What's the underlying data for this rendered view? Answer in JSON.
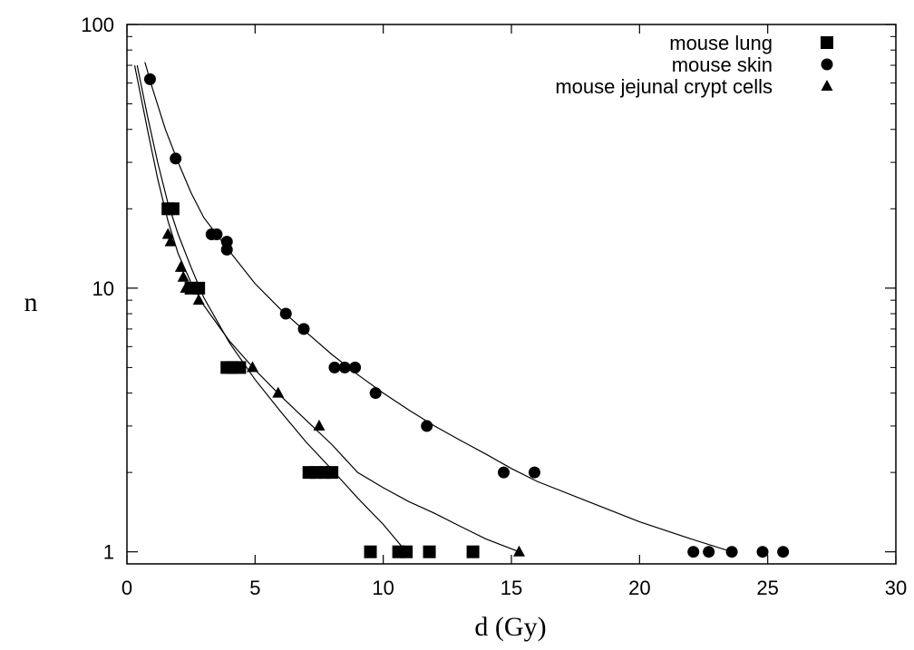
{
  "chart_data": {
    "type": "scatter",
    "xlabel": "d (Gy)",
    "ylabel": "n",
    "xlim": [
      0,
      30
    ],
    "ylim": [
      0.9,
      100
    ],
    "y_scale": "log",
    "x_ticks": [
      "0",
      "5",
      "10",
      "15",
      "20",
      "25",
      "30"
    ],
    "y_ticks": [
      "1",
      "10",
      "100"
    ],
    "legend_position": "top-right",
    "grid": false,
    "series": [
      {
        "name": "mouse lung",
        "marker": "square",
        "color": "#000000",
        "points": [
          [
            1.6,
            20
          ],
          [
            1.8,
            20
          ],
          [
            2.5,
            10
          ],
          [
            2.8,
            10
          ],
          [
            3.9,
            5
          ],
          [
            4.1,
            5
          ],
          [
            4.4,
            5
          ],
          [
            7.1,
            2
          ],
          [
            7.4,
            2
          ],
          [
            7.7,
            2
          ],
          [
            8.0,
            2
          ],
          [
            9.5,
            1
          ],
          [
            10.6,
            1
          ],
          [
            10.9,
            1
          ],
          [
            11.8,
            1
          ],
          [
            13.5,
            1
          ]
        ],
        "fit": [
          [
            0.4,
            70
          ],
          [
            0.8,
            45
          ],
          [
            1.2,
            30
          ],
          [
            1.6,
            21
          ],
          [
            2.0,
            16
          ],
          [
            2.5,
            12
          ],
          [
            3.0,
            9.2
          ],
          [
            4.0,
            6.2
          ],
          [
            5.0,
            4.5
          ],
          [
            6.0,
            3.4
          ],
          [
            7.0,
            2.6
          ],
          [
            8.0,
            2.05
          ],
          [
            9.0,
            1.6
          ],
          [
            10.0,
            1.27
          ],
          [
            10.9,
            1.0
          ]
        ]
      },
      {
        "name": "mouse skin",
        "marker": "circle",
        "color": "#000000",
        "points": [
          [
            0.9,
            62
          ],
          [
            1.9,
            31
          ],
          [
            3.3,
            16
          ],
          [
            3.5,
            16
          ],
          [
            3.9,
            15
          ],
          [
            3.9,
            14
          ],
          [
            6.2,
            8
          ],
          [
            6.9,
            7
          ],
          [
            8.1,
            5
          ],
          [
            8.5,
            5
          ],
          [
            8.9,
            5
          ],
          [
            9.7,
            4
          ],
          [
            11.7,
            3
          ],
          [
            14.7,
            2
          ],
          [
            15.9,
            2
          ],
          [
            22.1,
            1
          ],
          [
            22.7,
            1
          ],
          [
            23.6,
            1
          ],
          [
            24.8,
            1
          ],
          [
            25.6,
            1
          ]
        ],
        "fit": [
          [
            0.7,
            72
          ],
          [
            1.0,
            57
          ],
          [
            1.5,
            40
          ],
          [
            2.0,
            30
          ],
          [
            2.5,
            23
          ],
          [
            3.0,
            18.5
          ],
          [
            3.5,
            16
          ],
          [
            4.0,
            13.8
          ],
          [
            5.0,
            10.4
          ],
          [
            6.0,
            8.3
          ],
          [
            7.0,
            6.8
          ],
          [
            8.0,
            5.6
          ],
          [
            9.0,
            4.7
          ],
          [
            10.0,
            4.0
          ],
          [
            11.0,
            3.45
          ],
          [
            12.0,
            3.0
          ],
          [
            13.0,
            2.65
          ],
          [
            14.0,
            2.35
          ],
          [
            15.0,
            2.07
          ],
          [
            16.0,
            1.85
          ],
          [
            18.0,
            1.55
          ],
          [
            20.0,
            1.3
          ],
          [
            22.0,
            1.12
          ],
          [
            23.6,
            1.0
          ]
        ]
      },
      {
        "name": "mouse jejunal crypt cells",
        "marker": "triangle",
        "color": "#000000",
        "points": [
          [
            1.6,
            16
          ],
          [
            1.7,
            15
          ],
          [
            2.1,
            12
          ],
          [
            2.2,
            11
          ],
          [
            2.3,
            10
          ],
          [
            2.8,
            9
          ],
          [
            4.9,
            5
          ],
          [
            5.9,
            4
          ],
          [
            7.5,
            3
          ],
          [
            15.3,
            1
          ]
        ],
        "fit": [
          [
            0.3,
            70
          ],
          [
            0.8,
            40
          ],
          [
            1.2,
            26
          ],
          [
            1.6,
            18
          ],
          [
            2.0,
            13.5
          ],
          [
            2.5,
            10.5
          ],
          [
            3.0,
            8.6
          ],
          [
            4.0,
            6.3
          ],
          [
            5.0,
            4.9
          ],
          [
            6.0,
            3.9
          ],
          [
            7.0,
            3.15
          ],
          [
            8.0,
            2.55
          ],
          [
            9.0,
            2.0
          ],
          [
            10.0,
            1.75
          ],
          [
            11.0,
            1.55
          ],
          [
            12.0,
            1.4
          ],
          [
            13.0,
            1.25
          ],
          [
            14.0,
            1.12
          ],
          [
            15.3,
            1.0
          ]
        ]
      }
    ]
  }
}
